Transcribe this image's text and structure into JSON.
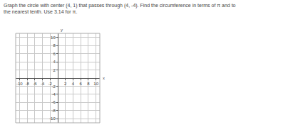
{
  "chart_data": {
    "type": "scatter",
    "title": [
      "Graph the circle with center (4, 1) that passes through (4, -4). Find the circumference in terms of π and to",
      "the nearest tenth. Use 3.14 for π."
    ],
    "xlabel": "x",
    "ylabel": "y",
    "x": [],
    "values": [],
    "xlim": [
      -11,
      11
    ],
    "ylim": [
      -11,
      11
    ],
    "xticks": [
      -10,
      -8,
      -6,
      -4,
      -2,
      2,
      4,
      6,
      8,
      10
    ],
    "yticks": [
      -10,
      -8,
      -6,
      -4,
      -2,
      2,
      4,
      6,
      8,
      10
    ],
    "grid": true
  }
}
